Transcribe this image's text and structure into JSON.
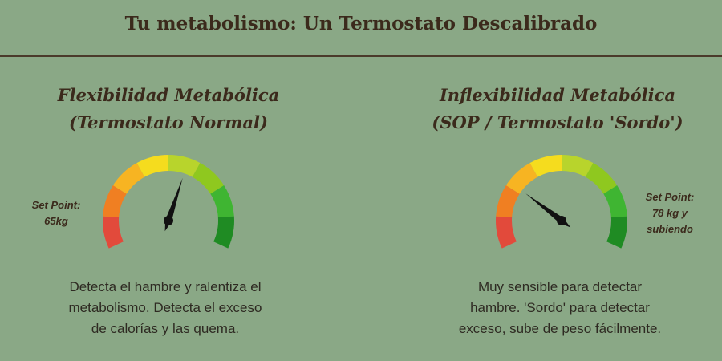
{
  "header": {
    "title": "Tu metabolismo: Un Termostato Descalibrado"
  },
  "panels": [
    {
      "title_line1": "Flexibilidad Metabólica",
      "title_line2": "(Termostato Normal)",
      "setpoint_line1": "Set Point:",
      "setpoint_line2": "65kg",
      "setpoint_line3": "",
      "needle_level": 0.58,
      "desc_line1": "Detecta el hambre y ralentiza el",
      "desc_line2": "metabolismo. Detecta el exceso",
      "desc_line3": "de calorías y las quema."
    },
    {
      "title_line1": "Inflexibilidad Metabólica",
      "title_line2": "(SOP / Termostato 'Sordo')",
      "setpoint_line1": "Set Point:",
      "setpoint_line2": "78 kg y",
      "setpoint_line3": "subiendo",
      "needle_level": 0.27,
      "desc_line1": "Muy sensible para detectar",
      "desc_line2": "hambre. 'Sordo' para detectar",
      "desc_line3": "exceso, sube de peso fácilmente."
    }
  ],
  "gauge_colors": [
    "#e24a3b",
    "#f07f22",
    "#f7b422",
    "#f5dc1e",
    "#b8d42c",
    "#8fc81f",
    "#3fb532",
    "#1f8b23"
  ]
}
